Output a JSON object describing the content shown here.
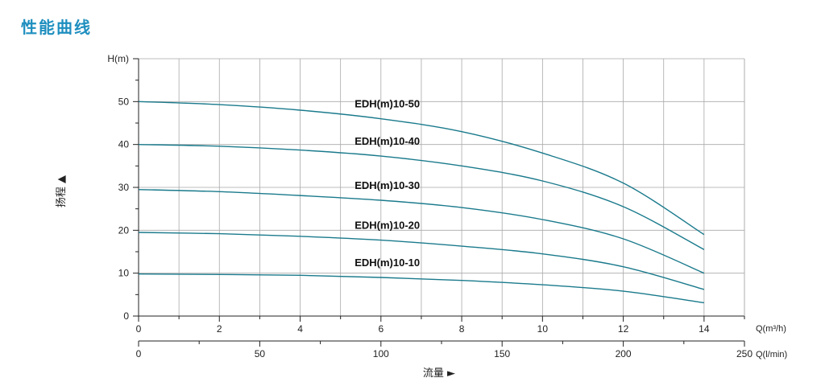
{
  "page": {
    "title": "性能曲线"
  },
  "colors": {
    "accent": "#1f8fbf",
    "curve": "#1a7a8c",
    "grid": "#a9a9a9"
  },
  "chart_data": {
    "type": "line",
    "title": "",
    "ylabel": "H(m)",
    "y_axis_side_label": "扬程 ▲",
    "x_axis_bottom_label": "流量 ►",
    "x_primary": {
      "label": "Q(m³/h)",
      "range": [
        0,
        15
      ],
      "ticks": [
        0,
        2,
        4,
        6,
        8,
        10,
        12,
        14
      ]
    },
    "x_secondary": {
      "label": "Q(l/min)",
      "range": [
        0,
        250
      ],
      "ticks": [
        0,
        50,
        100,
        150,
        200,
        250
      ]
    },
    "ylim": [
      0,
      60
    ],
    "yticks": [
      0,
      10,
      20,
      30,
      40,
      50
    ],
    "grid": true,
    "series": [
      {
        "name": "EDH(m)10-50",
        "x": [
          0,
          2,
          4,
          6,
          8,
          10,
          12,
          14
        ],
        "y": [
          50,
          49.3,
          48,
          46,
          43,
          38,
          31,
          19
        ]
      },
      {
        "name": "EDH(m)10-40",
        "x": [
          0,
          2,
          4,
          6,
          8,
          10,
          12,
          14
        ],
        "y": [
          40,
          39.6,
          38.7,
          37.3,
          35,
          31.5,
          25.5,
          15.5
        ]
      },
      {
        "name": "EDH(m)10-30",
        "x": [
          0,
          2,
          4,
          6,
          8,
          10,
          12,
          14
        ],
        "y": [
          29.5,
          29,
          28.1,
          27,
          25.3,
          22.5,
          18,
          10
        ]
      },
      {
        "name": "EDH(m)10-20",
        "x": [
          0,
          2,
          4,
          6,
          8,
          10,
          12,
          14
        ],
        "y": [
          19.5,
          19.2,
          18.6,
          17.7,
          16.3,
          14.5,
          11.5,
          6.2
        ]
      },
      {
        "name": "EDH(m)10-10",
        "x": [
          0,
          2,
          4,
          6,
          8,
          10,
          12,
          14
        ],
        "y": [
          9.8,
          9.7,
          9.5,
          9,
          8.3,
          7.3,
          5.8,
          3.1
        ]
      }
    ]
  }
}
